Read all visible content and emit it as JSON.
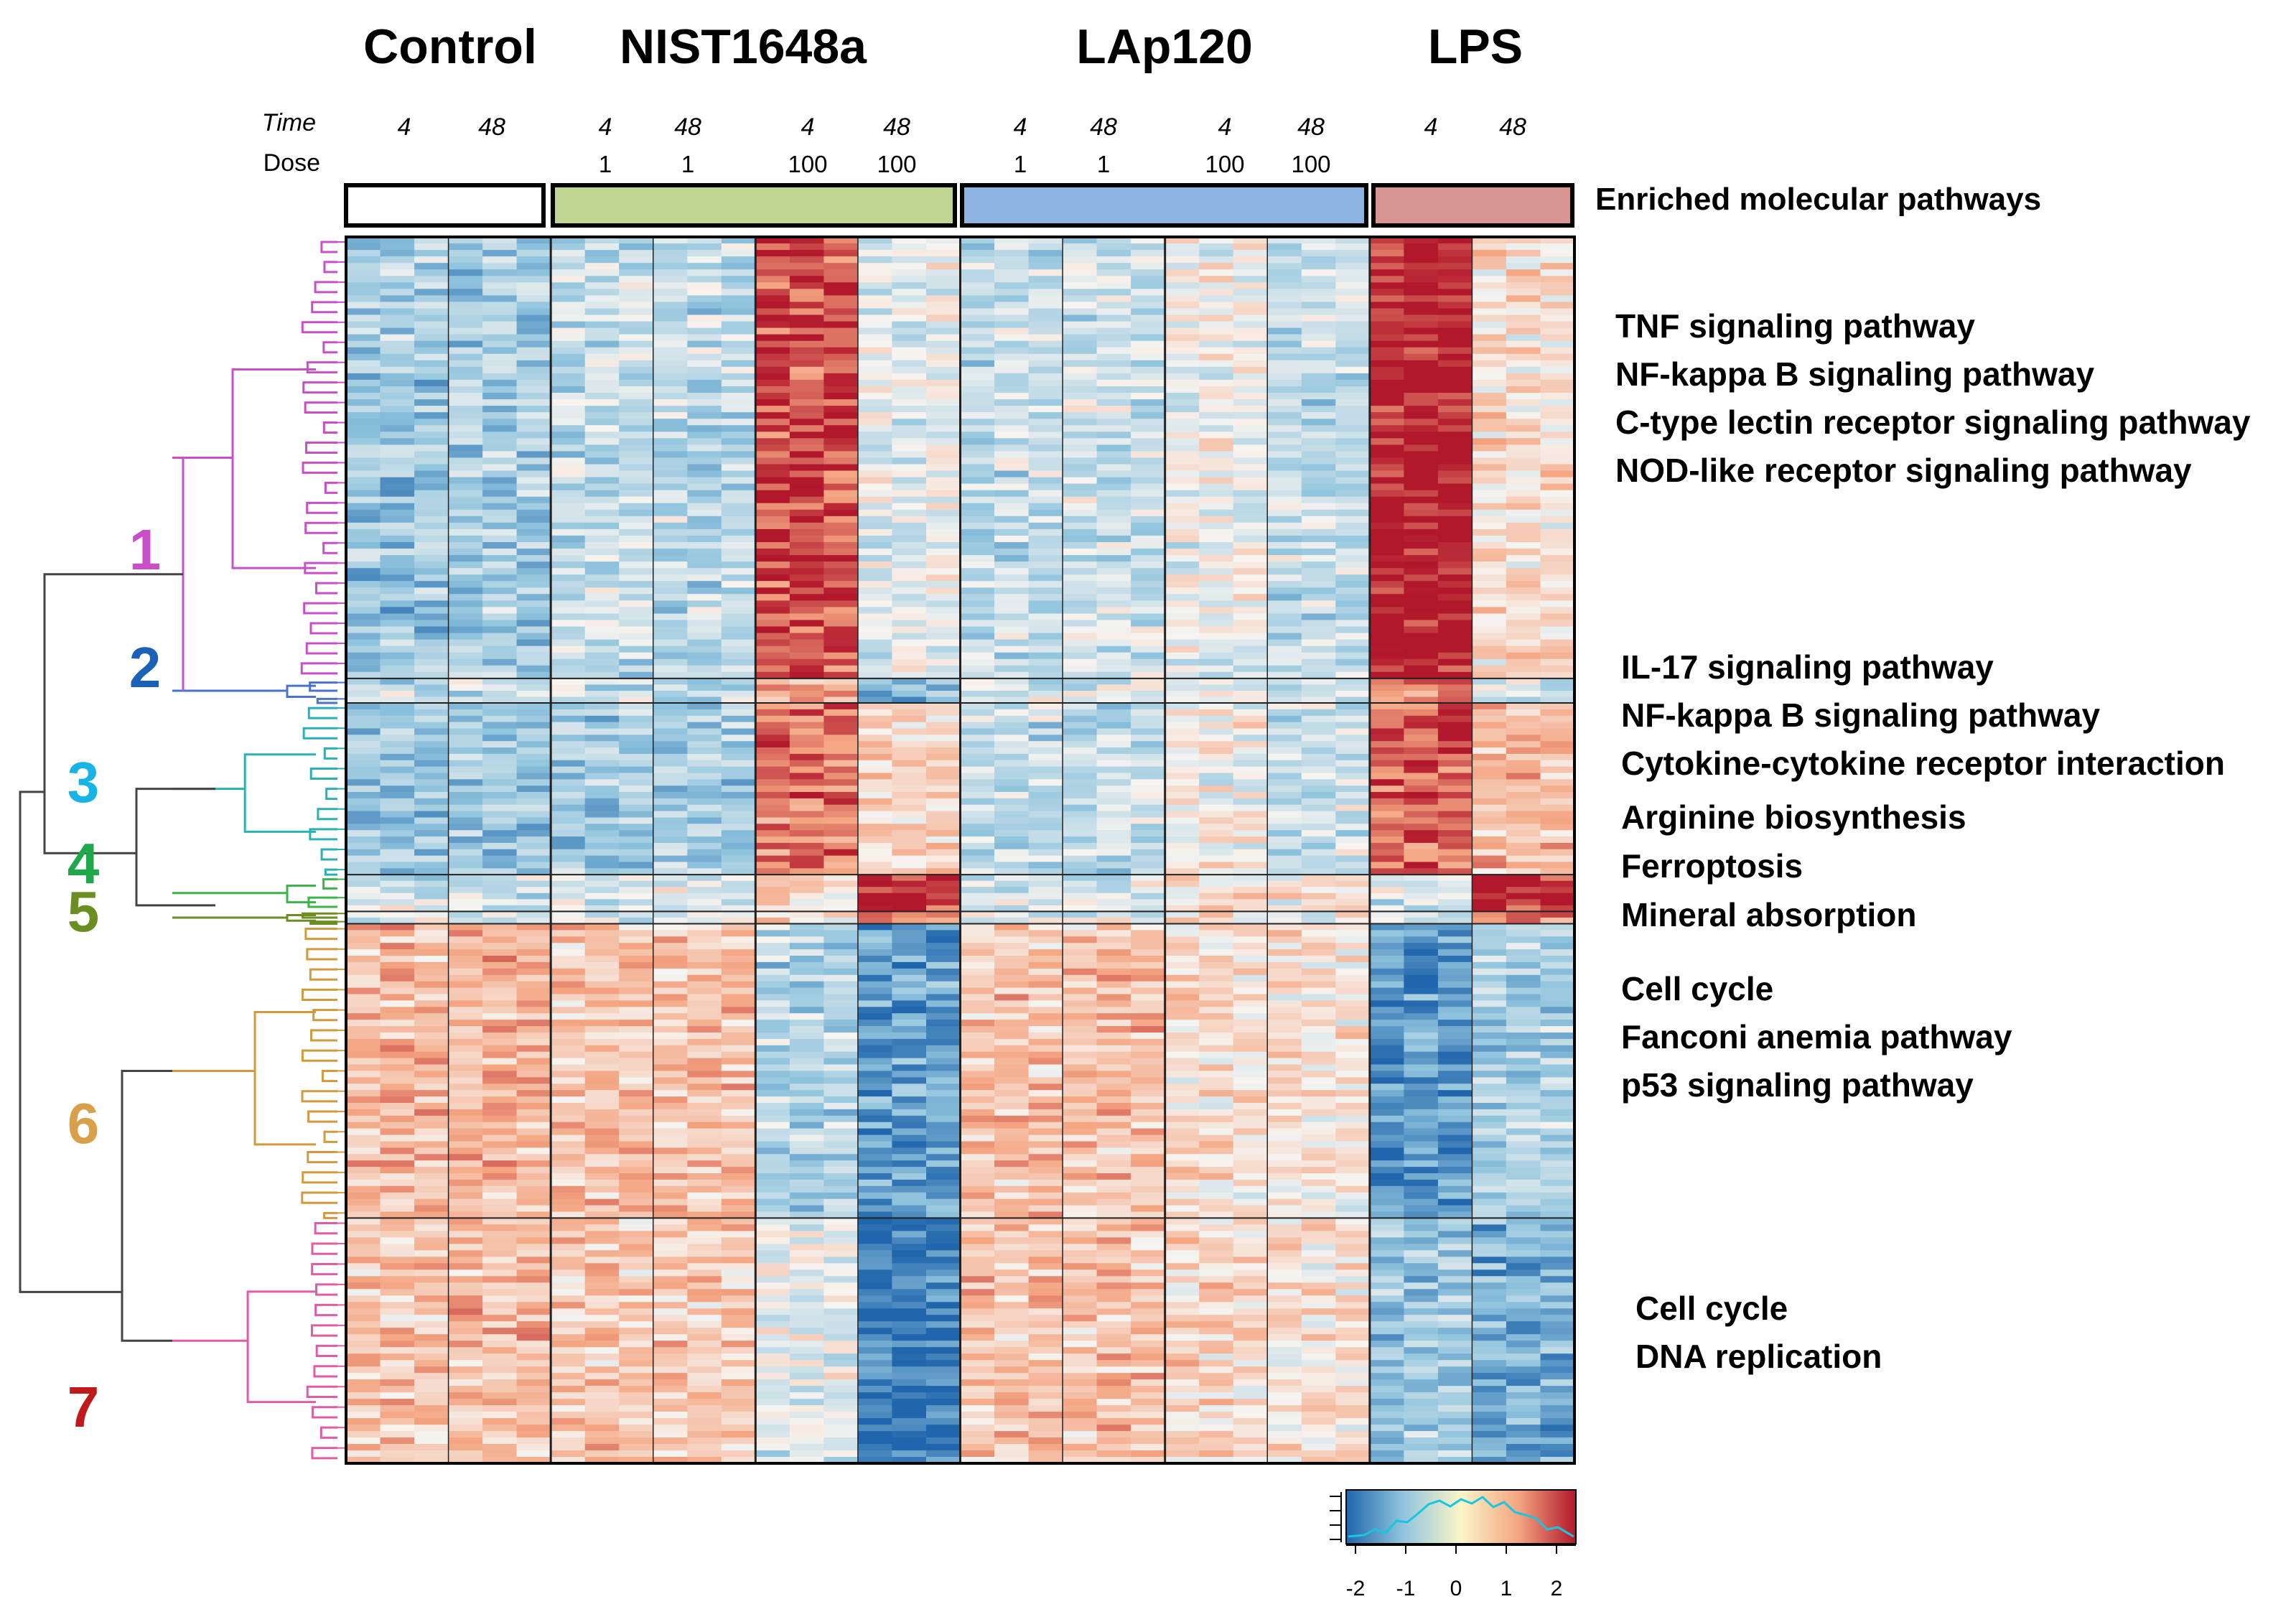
{
  "chart_data": {
    "type": "heatmap",
    "title": "",
    "group_headers": [
      {
        "label": "Control",
        "color": "#ffffff"
      },
      {
        "label": "NIST1648a",
        "color": "#bfd591"
      },
      {
        "label": "LAp120",
        "color": "#8db3e2"
      },
      {
        "label": "LPS",
        "color": "#d99591"
      }
    ],
    "row_labels": {
      "time": "Time",
      "dose": "Dose"
    },
    "columns": [
      {
        "group": "Control",
        "time": "4",
        "dose": ""
      },
      {
        "group": "Control",
        "time": "48",
        "dose": ""
      },
      {
        "group": "NIST1648a",
        "time": "4",
        "dose": "1"
      },
      {
        "group": "NIST1648a",
        "time": "48",
        "dose": "1"
      },
      {
        "group": "NIST1648a",
        "time": "4",
        "dose": "100"
      },
      {
        "group": "NIST1648a",
        "time": "48",
        "dose": "100"
      },
      {
        "group": "LAp120",
        "time": "4",
        "dose": "1"
      },
      {
        "group": "LAp120",
        "time": "48",
        "dose": "1"
      },
      {
        "group": "LAp120",
        "time": "4",
        "dose": "100"
      },
      {
        "group": "LAp120",
        "time": "48",
        "dose": "100"
      },
      {
        "group": "LPS",
        "time": "4",
        "dose": ""
      },
      {
        "group": "LPS",
        "time": "48",
        "dose": ""
      }
    ],
    "clusters": [
      {
        "id": "1",
        "color": "#c94fc9",
        "size": 18,
        "values": [
          -0.9,
          -0.8,
          -0.5,
          -0.6,
          1.6,
          -0.2,
          -0.5,
          -0.4,
          -0.1,
          -0.5,
          2.0,
          0.3
        ]
      },
      {
        "id": "2",
        "color": "#4a74c9",
        "size": 1,
        "values": [
          -0.5,
          -0.5,
          -0.4,
          -0.5,
          0.9,
          -1.2,
          -0.3,
          -0.3,
          -0.1,
          -0.4,
          1.2,
          -0.4
        ]
      },
      {
        "id": "3",
        "color": "#2bb0b6",
        "size": 7,
        "values": [
          -1.0,
          -0.9,
          -0.8,
          -0.8,
          1.3,
          0.4,
          -0.5,
          -0.5,
          0.0,
          -0.4,
          1.5,
          0.7
        ]
      },
      {
        "id": "4",
        "color": "#3db34a",
        "size": 1.5,
        "values": [
          -0.4,
          -0.4,
          -0.3,
          -0.3,
          0.4,
          1.8,
          -0.3,
          -0.3,
          0.2,
          0.1,
          -0.4,
          1.9
        ]
      },
      {
        "id": "5",
        "color": "#6b8e23",
        "size": 0.5,
        "values": [
          -0.3,
          -0.3,
          -0.3,
          -0.3,
          0.3,
          1.2,
          -0.2,
          -0.2,
          0.1,
          0.0,
          -0.3,
          1.2
        ]
      },
      {
        "id": "6",
        "color": "#d19a3c",
        "size": 12,
        "values": [
          0.7,
          0.8,
          0.6,
          0.6,
          -0.7,
          -1.4,
          0.6,
          0.6,
          0.3,
          0.2,
          -1.5,
          -0.7
        ]
      },
      {
        "id": "7",
        "color": "#e05da6",
        "size": 10,
        "values": [
          0.6,
          0.7,
          0.5,
          0.5,
          -0.2,
          -1.7,
          0.6,
          0.6,
          0.3,
          0.2,
          -0.9,
          -1.2
        ]
      }
    ],
    "cluster_label_colors": {
      "1": "#c94fc9",
      "2": "#1a62b8",
      "3": "#19b4e6",
      "4": "#1ea84a",
      "5": "#6b8e23",
      "6": "#d9a04a",
      "7": "#c01919"
    },
    "pathways_title": "Enriched molecular pathways",
    "pathways": [
      {
        "text": "TNF signaling pathway",
        "color": "#c94fc9"
      },
      {
        "text": "NF-kappa B signaling pathway",
        "color": "#c94fc9"
      },
      {
        "text": "C-type lectin receptor signaling pathway",
        "color": "#c94fc9"
      },
      {
        "text": "NOD-like receptor signaling pathway",
        "color": "#c94fc9"
      },
      {
        "text": "IL-17 signaling pathway",
        "color": "#8ec9e0"
      },
      {
        "text": "NF-kappa B signaling pathway",
        "color": "#8ec9e0"
      },
      {
        "text": "Cytokine-cytokine receptor interaction",
        "color": "#8ec9e0"
      },
      {
        "text": "Arginine biosynthesis",
        "color": "#1fb14b"
      },
      {
        "text": "Ferroptosis",
        "color": "#556b2f"
      },
      {
        "text": "Mineral absorption",
        "color": "#556b2f"
      },
      {
        "text": "Cell cycle",
        "color": "#dca24e"
      },
      {
        "text": "Fanconi anemia pathway",
        "color": "#dca24e"
      },
      {
        "text": "p53 signaling pathway",
        "color": "#dca24e"
      },
      {
        "text": "Cell cycle",
        "color": "#a52a2a"
      },
      {
        "text": "DNA replication",
        "color": "#a52a2a"
      }
    ],
    "color_key": {
      "range": [
        -2,
        2
      ],
      "ticks": [
        "-2",
        "-1",
        "0",
        "1",
        "2"
      ],
      "colors": [
        "#2166ac",
        "#92c5de",
        "#f7f7f7",
        "#fddbc7",
        "#b2182b"
      ]
    }
  }
}
